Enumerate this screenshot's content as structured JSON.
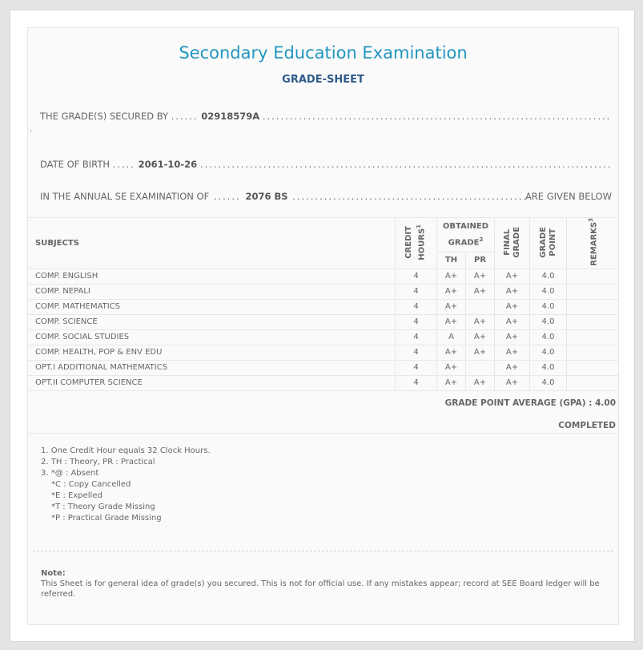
{
  "header": {
    "title": "Secondary Education Examination",
    "subtitle": "GRADE-SHEET"
  },
  "info": {
    "secured_by_label": "THE GRADE(S) SECURED BY",
    "symbol_no": "02918579A",
    "dob_label": "DATE OF BIRTH",
    "dob": "2061-10-26",
    "exam_label": "IN THE ANNUAL SE EXAMINATION OF",
    "exam_year": "2076 BS",
    "exam_suffix": "ARE GIVEN BELOW"
  },
  "table": {
    "headers": {
      "subjects": "SUBJECTS",
      "credit_hours": "CREDIT HOURS",
      "credit_sup": "1",
      "obtained_grade": "OBTAINED GRADE",
      "obtained_sup": "2",
      "th": "TH",
      "pr": "PR",
      "final_grade": "FINAL GRADE",
      "grade_point": "GRADE POINT",
      "remarks": "REMARKS",
      "remarks_sup": "3"
    },
    "rows": [
      {
        "subject": "COMP. ENGLISH",
        "credit": "4",
        "th": "A+",
        "pr": "A+",
        "final": "A+",
        "gp": "4.0",
        "remarks": ""
      },
      {
        "subject": "COMP. NEPALI",
        "credit": "4",
        "th": "A+",
        "pr": "A+",
        "final": "A+",
        "gp": "4.0",
        "remarks": ""
      },
      {
        "subject": "COMP. MATHEMATICS",
        "credit": "4",
        "th": "A+",
        "pr": "",
        "final": "A+",
        "gp": "4.0",
        "remarks": ""
      },
      {
        "subject": "COMP. SCIENCE",
        "credit": "4",
        "th": "A+",
        "pr": "A+",
        "final": "A+",
        "gp": "4.0",
        "remarks": ""
      },
      {
        "subject": "COMP. SOCIAL STUDIES",
        "credit": "4",
        "th": "A",
        "pr": "A+",
        "final": "A+",
        "gp": "4.0",
        "remarks": ""
      },
      {
        "subject": "COMP. HEALTH, POP & ENV EDU",
        "credit": "4",
        "th": "A+",
        "pr": "A+",
        "final": "A+",
        "gp": "4.0",
        "remarks": ""
      },
      {
        "subject": "OPT.I ADDITIONAL MATHEMATICS",
        "credit": "4",
        "th": "A+",
        "pr": "",
        "final": "A+",
        "gp": "4.0",
        "remarks": ""
      },
      {
        "subject": "OPT.II COMPUTER SCIENCE",
        "credit": "4",
        "th": "A+",
        "pr": "A+",
        "final": "A+",
        "gp": "4.0",
        "remarks": ""
      }
    ]
  },
  "summary": {
    "gpa": "GRADE POINT AVERAGE (GPA) : 4.00",
    "status": "COMPLETED"
  },
  "footnotes": [
    "1. One Credit Hour equals 32 Clock Hours.",
    "2. TH : Theory, PR : Practical",
    "3. *@ : Absent",
    "*C : Copy Cancelled",
    "*E : Expelled",
    "*T : Theory Grade Missing",
    "*P : Practical Grade Missing"
  ],
  "note": {
    "label": "Note:",
    "text": "This Sheet is for general idea of grade(s) you secured. This is not for official use. If any mistakes appear; record at SEE Board ledger will be referred."
  }
}
